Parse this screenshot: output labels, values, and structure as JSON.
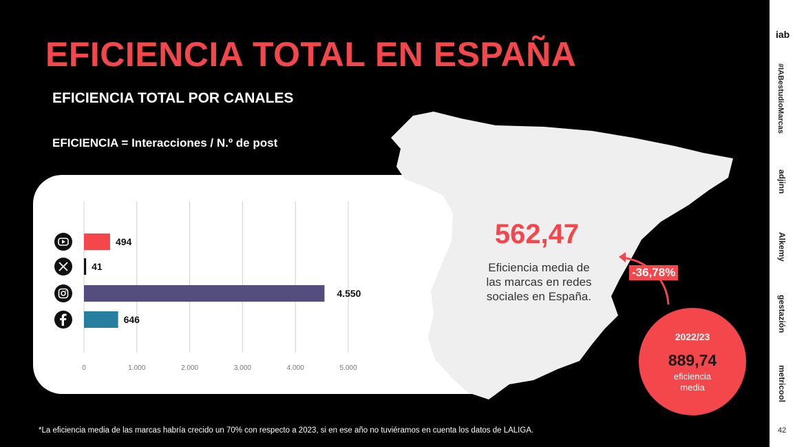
{
  "page": {
    "title": "EFICIENCIA TOTAL EN ESPAÑA",
    "subtitle": "EFICIENCIA TOTAL POR CANALES",
    "formula": "EFICIENCIA = Interacciones / N.º de post",
    "footnote": "*La eficiencia media de las marcas habría crecido un 70% con respecto a 2023, si en ese año no tuviéramos en cuenta los datos de LALIGA.",
    "page_number": "42"
  },
  "colors": {
    "accent": "#f4474c",
    "background": "#000000"
  },
  "chart_data": {
    "type": "bar",
    "orientation": "horizontal",
    "categories": [
      "YouTube",
      "X",
      "Instagram",
      "Facebook"
    ],
    "category_icons": [
      "youtube-icon",
      "x-icon",
      "instagram-icon",
      "facebook-icon"
    ],
    "values": [
      494,
      41,
      4550,
      646
    ],
    "value_labels": [
      "494",
      "41",
      "4.550",
      "646"
    ],
    "bar_colors": [
      "#f4474c",
      "#111111",
      "#544e7f",
      "#267ea0"
    ],
    "xlim": [
      0,
      5000
    ],
    "xticks": [
      0,
      1000,
      2000,
      3000,
      4000,
      5000
    ],
    "xtick_labels": [
      "0",
      "1.000",
      "2.000",
      "3.000",
      "4.000",
      "5.000"
    ],
    "grid": true
  },
  "map": {
    "value": "562,47",
    "description_lines": [
      "Eficiencia media de",
      "las marcas en redes",
      "sociales en España."
    ],
    "change": "-36,78%"
  },
  "previous": {
    "year": "2022/23",
    "value": "889,74",
    "label_lines": [
      "eficiencia",
      "media"
    ]
  },
  "sidebar": {
    "logo": "iab",
    "hashtag": "#IABestudioMarcas",
    "sponsors": [
      "adjinn",
      "Alkemy",
      "gestazión",
      "metricool"
    ]
  }
}
